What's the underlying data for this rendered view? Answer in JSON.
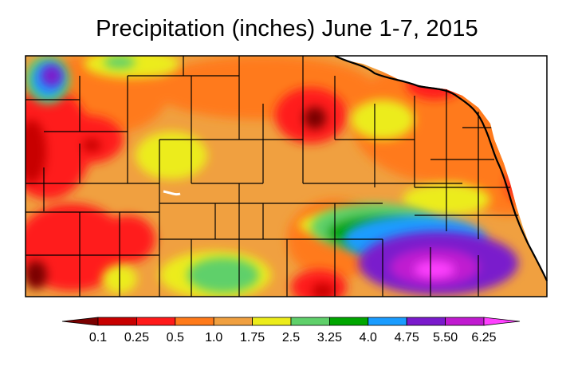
{
  "title": "Precipitation (inches) June 1-7, 2015",
  "legend": {
    "bins": [
      {
        "color": "#7a0000"
      },
      {
        "color": "#c80000"
      },
      {
        "color": "#ff1a1a"
      },
      {
        "color": "#ff7a1a"
      },
      {
        "color": "#f0a040"
      },
      {
        "color": "#ecec1a"
      },
      {
        "color": "#5fd06a"
      },
      {
        "color": "#00a600"
      },
      {
        "color": "#1a9cff"
      },
      {
        "color": "#7a1acc"
      },
      {
        "color": "#c01ad0"
      },
      {
        "color": "#ff40ff"
      }
    ],
    "ticks": [
      "0.1",
      "0.25",
      "0.5",
      "1.0",
      "1.75",
      "2.5",
      "3.25",
      "4.0",
      "4.75",
      "5.50",
      "6.25"
    ]
  },
  "colors": {
    "base": "#f0a040",
    "dry_red": "#ff1a1a",
    "dark_red": "#c80000",
    "orange": "#ff7a1a",
    "yellow": "#ecec1a",
    "light_green": "#5fd06a",
    "green": "#00a600",
    "blue": "#1a9cff",
    "purple": "#7a1acc",
    "magenta": "#c01ad0",
    "pink": "#ff40ff"
  }
}
